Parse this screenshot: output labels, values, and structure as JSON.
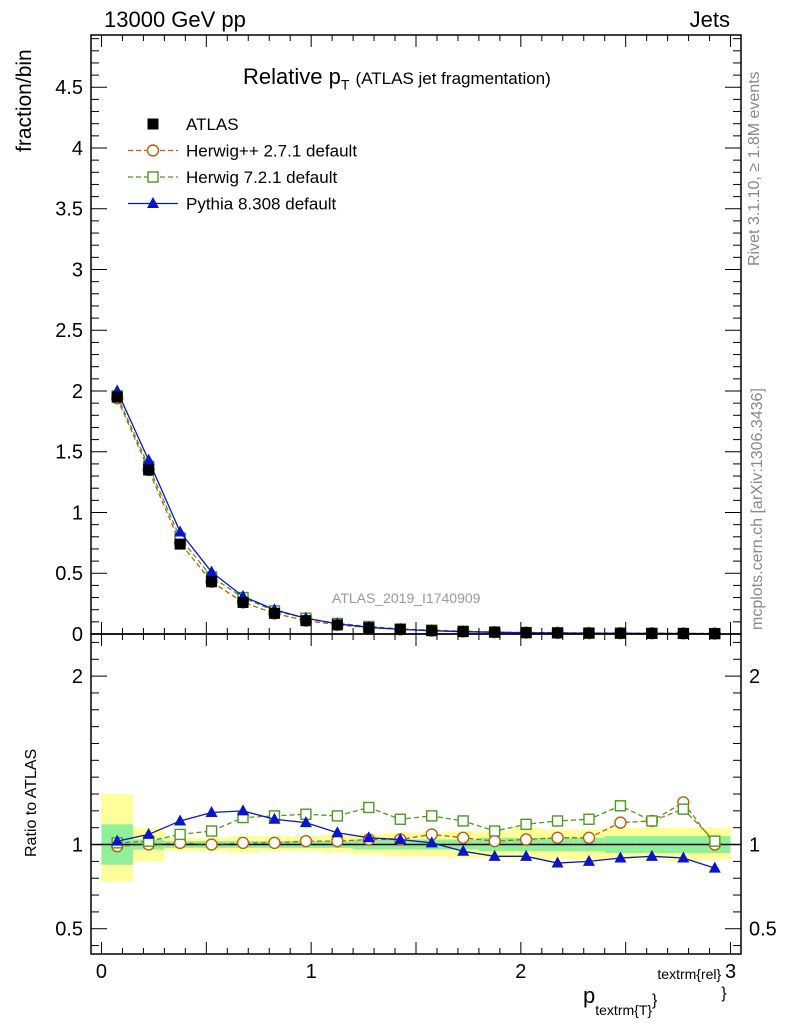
{
  "header": {
    "left": "13000 GeV pp",
    "right": "Jets"
  },
  "side": {
    "rivet": "Rivet 3.1.10, ≥ 1.8M events",
    "mcplots": "mcplots.cern.ch [arXiv:1306.3436]"
  },
  "chart_data": {
    "type": "line",
    "title_main": "Relative p",
    "title_sub": "T",
    "title_rest": "(ATLAS jet fragmentation)",
    "watermark": "ATLAS_2019_I1740909",
    "ylabel": "fraction/bin",
    "ratio_ylabel": "Ratio to ATLAS",
    "xlabel_main": "p",
    "xlabel_sub": "textrm{T}",
    "xlabel_sup": "textrm{rel}",
    "xlabel_brace": "}",
    "xlim": [
      -0.05,
      3.05
    ],
    "ylim": [
      0,
      4.93
    ],
    "ratio_ylim": [
      0.35,
      2.25
    ],
    "xticks": [
      "0",
      "1",
      "2",
      "3"
    ],
    "yticks": [
      "0",
      "0.5",
      "1",
      "1.5",
      "2",
      "2.5",
      "3",
      "3.5",
      "4",
      "4.5"
    ],
    "ratio_yticks_left": [
      "0.5",
      "1",
      "2"
    ],
    "ratio_yticks_right": [
      "0.5",
      "1",
      "2"
    ],
    "x": [
      0.075,
      0.225,
      0.375,
      0.525,
      0.675,
      0.825,
      0.975,
      1.125,
      1.275,
      1.425,
      1.575,
      1.725,
      1.875,
      2.025,
      2.175,
      2.325,
      2.475,
      2.625,
      2.775,
      2.925
    ],
    "series": [
      {
        "name": "ATLAS",
        "color": "#000000",
        "marker": "square-filled",
        "values": [
          1.95,
          1.35,
          0.74,
          0.43,
          0.26,
          0.17,
          0.11,
          0.075,
          0.052,
          0.037,
          0.027,
          0.02,
          0.015,
          0.011,
          0.009,
          0.007,
          0.006,
          0.005,
          0.004,
          0.003
        ],
        "ratio": [
          1,
          1,
          1,
          1,
          1,
          1,
          1,
          1,
          1,
          1,
          1,
          1,
          1,
          1,
          1,
          1,
          1,
          1,
          1,
          1
        ]
      },
      {
        "name": "Herwig++ 2.7.1 default",
        "color": "#b8600a",
        "marker": "circle-open",
        "values": [
          1.94,
          1.35,
          0.75,
          0.43,
          0.26,
          0.17,
          0.11,
          0.076,
          0.053,
          0.038,
          0.028,
          0.021,
          0.015,
          0.011,
          0.0095,
          0.0073,
          0.0068,
          0.0058,
          0.0049,
          0.003
        ],
        "ratio": [
          0.99,
          1.0,
          1.01,
          1.0,
          1.01,
          1.01,
          1.02,
          1.02,
          1.03,
          1.03,
          1.06,
          1.04,
          1.02,
          1.03,
          1.04,
          1.04,
          1.13,
          1.14,
          1.25,
          1.0
        ]
      },
      {
        "name": "Herwig 7.2.1 default",
        "color": "#4c9a1e",
        "marker": "square-open",
        "values": [
          1.96,
          1.38,
          0.79,
          0.47,
          0.3,
          0.19,
          0.13,
          0.087,
          0.062,
          0.042,
          0.032,
          0.023,
          0.016,
          0.012,
          0.01,
          0.008,
          0.0074,
          0.0057,
          0.0048,
          0.003
        ],
        "ratio": [
          1.01,
          1.02,
          1.06,
          1.08,
          1.16,
          1.17,
          1.18,
          1.17,
          1.22,
          1.15,
          1.17,
          1.14,
          1.08,
          1.12,
          1.14,
          1.15,
          1.23,
          1.14,
          1.21,
          1.02
        ]
      },
      {
        "name": "Pythia 8.308 default",
        "color": "#0a14c8",
        "marker": "triangle-filled",
        "values": [
          2.0,
          1.43,
          0.84,
          0.51,
          0.31,
          0.2,
          0.13,
          0.083,
          0.055,
          0.038,
          0.027,
          0.019,
          0.014,
          0.01,
          0.008,
          0.006,
          0.0056,
          0.0047,
          0.0037,
          0.0026
        ],
        "ratio": [
          1.02,
          1.06,
          1.14,
          1.19,
          1.2,
          1.15,
          1.13,
          1.07,
          1.04,
          1.03,
          1.01,
          0.96,
          0.93,
          0.93,
          0.89,
          0.9,
          0.92,
          0.93,
          0.92,
          0.86
        ]
      }
    ],
    "ratio_band_inner": [
      [
        0.88,
        1.12
      ],
      [
        0.97,
        1.03
      ],
      [
        0.98,
        1.02
      ],
      [
        0.98,
        1.02
      ],
      [
        0.98,
        1.02
      ],
      [
        0.98,
        1.02
      ],
      [
        0.98,
        1.02
      ],
      [
        0.98,
        1.02
      ],
      [
        0.97,
        1.03
      ],
      [
        0.97,
        1.03
      ],
      [
        0.97,
        1.03
      ],
      [
        0.97,
        1.03
      ],
      [
        0.96,
        1.04
      ],
      [
        0.96,
        1.04
      ],
      [
        0.96,
        1.04
      ],
      [
        0.96,
        1.04
      ],
      [
        0.95,
        1.05
      ],
      [
        0.95,
        1.05
      ],
      [
        0.95,
        1.05
      ],
      [
        0.95,
        1.05
      ]
    ],
    "ratio_band_outer": [
      [
        0.78,
        1.3
      ],
      [
        0.9,
        1.1
      ],
      [
        0.96,
        1.04
      ],
      [
        0.96,
        1.04
      ],
      [
        0.95,
        1.05
      ],
      [
        0.96,
        1.05
      ],
      [
        0.96,
        1.05
      ],
      [
        0.95,
        1.06
      ],
      [
        0.94,
        1.06
      ],
      [
        0.93,
        1.07
      ],
      [
        0.93,
        1.07
      ],
      [
        0.92,
        1.08
      ],
      [
        0.92,
        1.08
      ],
      [
        0.91,
        1.1
      ],
      [
        0.91,
        1.09
      ],
      [
        0.91,
        1.09
      ],
      [
        0.91,
        1.1
      ],
      [
        0.91,
        1.1
      ],
      [
        0.9,
        1.1
      ],
      [
        0.91,
        1.1
      ]
    ],
    "legend_position": "top-left"
  }
}
